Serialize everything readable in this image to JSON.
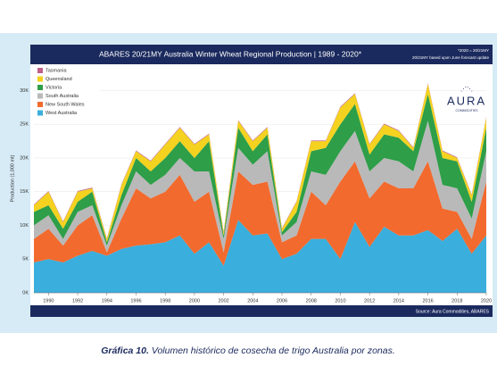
{
  "chart_data": {
    "type": "stacked-area",
    "title": "ABARES 20/21MY Australia Winter Wheat Regional Production | 1989 - 2020*",
    "notes": [
      "*2020 = 20/21MY",
      "20/21MY based upon June forecast update"
    ],
    "logo": {
      "name": "AURA",
      "sub": "COMMODITIES"
    },
    "y_label": "Production (1,000 mt)",
    "source": "Source: Aura Commodities, ABARES",
    "caption": {
      "label": "Gráfica 10.",
      "text": "Volumen histórico de cosecha de trigo Australia por zonas."
    },
    "x": [
      1989,
      1990,
      1991,
      1992,
      1993,
      1994,
      1995,
      1996,
      1997,
      1998,
      1999,
      2000,
      2001,
      2002,
      2003,
      2004,
      2005,
      2006,
      2007,
      2008,
      2009,
      2010,
      2011,
      2012,
      2013,
      2014,
      2015,
      2016,
      2017,
      2018,
      2019,
      2020
    ],
    "xlim": [
      1989,
      2020
    ],
    "xticks": [
      1990,
      1992,
      1994,
      1996,
      1998,
      2000,
      2002,
      2004,
      2006,
      2008,
      2010,
      2012,
      2014,
      2016,
      2018,
      2020
    ],
    "ylim": [
      0,
      33500
    ],
    "yticks": [
      {
        "value": 0,
        "label": "0K"
      },
      {
        "value": 5000,
        "label": "5K"
      },
      {
        "value": 10000,
        "label": "10K"
      },
      {
        "value": 15000,
        "label": "15K"
      },
      {
        "value": 20000,
        "label": "20K"
      },
      {
        "value": 25000,
        "label": "25K"
      },
      {
        "value": 30000,
        "label": "30K"
      }
    ],
    "series": [
      {
        "name": "West Australia",
        "color": "#3aaedc",
        "values": [
          4500,
          5000,
          4500,
          5500,
          6200,
          5500,
          6500,
          7000,
          7200,
          7500,
          8500,
          5800,
          7500,
          4000,
          10800,
          8500,
          8800,
          5000,
          5800,
          8000,
          8000,
          5000,
          10500,
          6800,
          9800,
          8500,
          8500,
          9300,
          7700,
          9500,
          5800,
          8500
        ]
      },
      {
        "name": "New South Wales",
        "color": "#f26a2e",
        "values": [
          3500,
          4500,
          2500,
          4500,
          5300,
          500,
          4500,
          8500,
          6800,
          7500,
          9000,
          7700,
          7500,
          2000,
          7200,
          7500,
          7700,
          2500,
          2700,
          7000,
          5000,
          11500,
          9000,
          7200,
          6700,
          7000,
          7000,
          10200,
          4800,
          2500,
          2200,
          8000
        ]
      },
      {
        "name": "South Australia",
        "color": "#b9b9b9",
        "values": [
          2000,
          2000,
          1000,
          2000,
          1500,
          1000,
          2000,
          2500,
          2000,
          2500,
          2500,
          4500,
          3000,
          2000,
          3500,
          3000,
          4500,
          1000,
          2000,
          3000,
          4500,
          4500,
          4500,
          4000,
          3500,
          4000,
          2500,
          6000,
          3500,
          3500,
          3000,
          4500
        ]
      },
      {
        "name": "Victoria",
        "color": "#2e9e48",
        "values": [
          2000,
          1500,
          1500,
          1500,
          2000,
          500,
          1500,
          2000,
          2000,
          2500,
          2500,
          2000,
          4500,
          500,
          3000,
          2000,
          2500,
          500,
          1500,
          3000,
          4000,
          4000,
          4000,
          2500,
          3500,
          3500,
          3000,
          4000,
          4000,
          4000,
          2500,
          3500
        ]
      },
      {
        "name": "Queensland",
        "color": "#f4d21f",
        "values": [
          1000,
          2000,
          1000,
          1500,
          500,
          500,
          1500,
          1000,
          1500,
          2000,
          2000,
          2000,
          1000,
          500,
          1000,
          1500,
          1000,
          500,
          1500,
          1500,
          1000,
          2500,
          1500,
          1500,
          1500,
          1000,
          500,
          1500,
          1000,
          500,
          1000,
          1500
        ]
      },
      {
        "name": "Tasmania",
        "color": "#c0608a",
        "values": [
          100,
          100,
          100,
          100,
          100,
          100,
          100,
          100,
          100,
          100,
          100,
          100,
          100,
          100,
          100,
          100,
          100,
          100,
          100,
          100,
          100,
          100,
          100,
          100,
          100,
          100,
          100,
          100,
          100,
          100,
          100,
          100
        ]
      }
    ]
  }
}
